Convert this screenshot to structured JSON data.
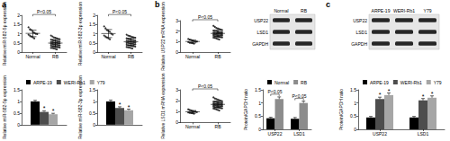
{
  "panel_labels": [
    "a",
    "b",
    "c"
  ],
  "blots": [
    {
      "columns": [
        "Normal",
        "RB"
      ],
      "rows": [
        "USP22",
        "LSD1",
        "GAPDH"
      ]
    },
    {
      "columns": [
        "ARPE-19",
        "WERI-Rb1",
        "Y79"
      ],
      "rows": [
        "USP22",
        "LSD1",
        "GAPDH"
      ]
    }
  ],
  "chart_data": [
    {
      "type": "scatter",
      "categories": [
        "Normal",
        "RB"
      ],
      "y_label": "Relative miR-582-5p expression",
      "ylim": [
        0,
        2
      ],
      "yticks": [
        0,
        0.5,
        1,
        1.5,
        2
      ],
      "color": "#000000",
      "marker": "circle",
      "annotation": "P<0.05",
      "groups": [
        [
          1.35,
          1.25,
          1.2,
          1.1,
          1.05,
          1.0,
          0.98,
          0.95,
          0.9,
          0.85,
          0.8,
          0.75
        ],
        [
          0.9,
          0.85,
          0.8,
          0.78,
          0.75,
          0.72,
          0.7,
          0.68,
          0.65,
          0.63,
          0.62,
          0.6,
          0.58,
          0.57,
          0.55,
          0.54,
          0.52,
          0.5,
          0.5,
          0.48,
          0.47,
          0.45,
          0.44,
          0.42,
          0.4,
          0.4,
          0.38,
          0.36,
          0.35,
          0.33,
          0.32,
          0.3,
          0.28,
          0.27,
          0.25,
          0.23,
          0.22,
          0.2,
          0.18,
          0.15
        ]
      ],
      "means": [
        1.02,
        0.49
      ],
      "sd": [
        0.18,
        0.2
      ]
    },
    {
      "type": "scatter",
      "categories": [
        "Normal",
        "RB"
      ],
      "y_label": "Relative miR-582-3p expression",
      "ylim": [
        0,
        2
      ],
      "yticks": [
        0,
        0.5,
        1,
        1.5,
        2
      ],
      "color": "#000000",
      "marker": "circle",
      "annotation": "P<0.05",
      "groups": [
        [
          1.4,
          1.3,
          1.2,
          1.15,
          1.1,
          1.0,
          0.95,
          0.9,
          0.85,
          0.8,
          0.75,
          0.7
        ],
        [
          0.95,
          0.9,
          0.88,
          0.85,
          0.82,
          0.8,
          0.78,
          0.75,
          0.72,
          0.7,
          0.68,
          0.66,
          0.65,
          0.63,
          0.62,
          0.6,
          0.58,
          0.57,
          0.55,
          0.54,
          0.52,
          0.5,
          0.5,
          0.48,
          0.46,
          0.45,
          0.43,
          0.42,
          0.4,
          0.38,
          0.37,
          0.35,
          0.33,
          0.32,
          0.3,
          0.28,
          0.26,
          0.25,
          0.22,
          0.2
        ]
      ],
      "means": [
        1.01,
        0.56
      ],
      "sd": [
        0.22,
        0.2
      ]
    },
    {
      "type": "bar",
      "categories": [
        null
      ],
      "y_label": "Relative miR-582-5p expression",
      "ylim": [
        0,
        1.5
      ],
      "yticks": [
        0,
        0.5,
        1,
        1.5
      ],
      "legend": "top",
      "tick_labels": "y",
      "series": [
        {
          "name": "ARPE-19",
          "color": "#000000",
          "values": [
            1.0
          ],
          "errors": [
            0.05
          ],
          "significance": [
            null
          ]
        },
        {
          "name": "WERI-Rb1",
          "color": "#4d4d4d",
          "values": [
            0.55
          ],
          "errors": [
            0.05
          ],
          "significance": [
            "*"
          ]
        },
        {
          "name": "Y79",
          "color": "#a6a6a6",
          "values": [
            0.45
          ],
          "errors": [
            0.04
          ],
          "significance": [
            "*"
          ]
        }
      ]
    },
    {
      "type": "bar",
      "categories": [
        null
      ],
      "y_label": "Relative miR-582-3p expression",
      "ylim": [
        0,
        1.5
      ],
      "yticks": [
        0,
        0.5,
        1,
        1.5
      ],
      "tick_labels": "y",
      "series": [
        {
          "name": "ARPE-19",
          "color": "#000000",
          "values": [
            1.0
          ],
          "errors": [
            0.06
          ],
          "significance": [
            null
          ]
        },
        {
          "name": "WERI-Rb1",
          "color": "#4d4d4d",
          "values": [
            0.72
          ],
          "errors": [
            0.05
          ],
          "significance": [
            "*"
          ]
        },
        {
          "name": "Y79",
          "color": "#a6a6a6",
          "values": [
            0.62
          ],
          "errors": [
            0.05
          ],
          "significance": [
            "*"
          ]
        }
      ]
    },
    {
      "type": "scatter",
      "categories": [
        "Normal",
        "RB"
      ],
      "y_label": "Relative USP22 mRNA expression",
      "ylim": [
        0,
        3
      ],
      "yticks": [
        0,
        1,
        2,
        3
      ],
      "color": "#000000",
      "marker": "circle",
      "annotation": "P<0.05",
      "groups": [
        [
          1.25,
          1.2,
          1.15,
          1.1,
          1.05,
          1.0,
          1.0,
          0.95,
          0.9,
          0.88,
          0.85,
          0.8
        ],
        [
          2.5,
          2.4,
          2.3,
          2.25,
          2.2,
          2.15,
          2.1,
          2.05,
          2.0,
          2.0,
          1.95,
          1.92,
          1.9,
          1.88,
          1.85,
          1.82,
          1.8,
          1.8,
          1.78,
          1.75,
          1.72,
          1.7,
          1.68,
          1.65,
          1.62,
          1.6,
          1.6,
          1.58,
          1.55,
          1.52,
          1.5,
          1.48,
          1.45,
          1.42,
          1.4,
          1.38,
          1.35,
          1.3,
          1.25,
          1.2
        ]
      ],
      "means": [
        1.01,
        1.78
      ],
      "sd": [
        0.14,
        0.33
      ]
    },
    {
      "type": "scatter",
      "categories": [
        "Normal",
        "RB"
      ],
      "y_label": "Relative LSD1 mRNA expression",
      "ylim": [
        0,
        3
      ],
      "yticks": [
        0,
        1,
        2,
        3
      ],
      "color": "#000000",
      "marker": "circle",
      "annotation": "P<0.05",
      "groups": [
        [
          1.2,
          1.15,
          1.1,
          1.05,
          1.0,
          1.0,
          0.95,
          0.92,
          0.9,
          0.87,
          0.85,
          0.8
        ],
        [
          2.3,
          2.2,
          2.15,
          2.1,
          2.05,
          2.0,
          1.95,
          1.92,
          1.9,
          1.88,
          1.85,
          1.82,
          1.8,
          1.78,
          1.75,
          1.72,
          1.7,
          1.68,
          1.66,
          1.65,
          1.62,
          1.6,
          1.58,
          1.55,
          1.52,
          1.5,
          1.5,
          1.48,
          1.45,
          1.42,
          1.4,
          1.38,
          1.35,
          1.32,
          1.3,
          1.28,
          1.25,
          1.2,
          1.15,
          1.1
        ]
      ],
      "means": [
        0.98,
        1.66
      ],
      "sd": [
        0.12,
        0.3
      ]
    },
    {
      "type": "bar",
      "categories": [
        "USP22",
        "LSD1"
      ],
      "y_label": "Protein/GAPDH ratio",
      "ylim": [
        0,
        1.5
      ],
      "yticks": [
        0,
        0.5,
        1,
        1.5
      ],
      "legend": "top",
      "comparisons": [
        "P<0.05",
        "P<0.05"
      ],
      "series": [
        {
          "name": "Normal",
          "color": "#000000",
          "values": [
            0.42,
            0.4
          ],
          "errors": [
            0.04,
            0.05
          ]
        },
        {
          "name": "RB",
          "color": "#8c8c8c",
          "values": [
            1.15,
            1.0
          ],
          "errors": [
            0.08,
            0.07
          ]
        }
      ]
    },
    {
      "type": "bar",
      "categories": [
        "USP22",
        "LSD1"
      ],
      "y_label": "Protein/GAPDH ratio",
      "ylim": [
        0,
        1.5
      ],
      "yticks": [
        0,
        0.5,
        1,
        1.5
      ],
      "legend": "top",
      "series": [
        {
          "name": "ARPE-19",
          "color": "#000000",
          "values": [
            0.45,
            0.45
          ],
          "errors": [
            0.04,
            0.04
          ],
          "significance": [
            null,
            null
          ]
        },
        {
          "name": "WERI-Rb1",
          "color": "#4d4d4d",
          "values": [
            1.15,
            1.1
          ],
          "errors": [
            0.07,
            0.07
          ],
          "significance": [
            "*",
            "*"
          ]
        },
        {
          "name": "Y79",
          "color": "#a6a6a6",
          "values": [
            1.3,
            1.2
          ],
          "errors": [
            0.08,
            0.07
          ],
          "significance": [
            "*",
            "*"
          ]
        }
      ]
    }
  ]
}
